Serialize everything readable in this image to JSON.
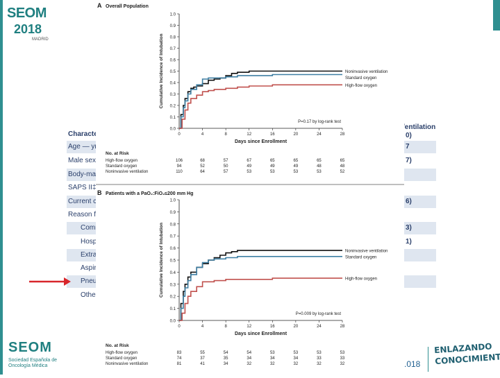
{
  "branding": {
    "logo_top": {
      "name": "SEOM",
      "year": "2018",
      "city": "MADRID"
    },
    "logo_bottom": {
      "name": "SEOM",
      "subtitle": "Sociedad Española de Oncología Médica"
    },
    "year_fragment": ".018",
    "slogan": "ENLAZANDO CONOCIMIENTO"
  },
  "background_table": {
    "header_left": "Characte",
    "header_right": "/entilation",
    "header_right_sub": "0)",
    "rows": [
      {
        "left": "Age — yr",
        "right": "7",
        "shaded": true,
        "indent": false
      },
      {
        "left": "Male sex",
        "right": "7)",
        "shaded": false,
        "indent": false
      },
      {
        "left": "Body-ma",
        "right": "",
        "shaded": true,
        "indent": false
      },
      {
        "left": "SAPS II‡",
        "right": "",
        "shaded": false,
        "indent": false
      },
      {
        "left": "Current c",
        "right": "6)",
        "shaded": true,
        "indent": false
      },
      {
        "left": "Reason f",
        "right": "",
        "shaded": false,
        "indent": false
      },
      {
        "left": "Comm",
        "right": "3)",
        "shaded": true,
        "indent": true
      },
      {
        "left": "Hosp",
        "right": "1)",
        "shaded": false,
        "indent": true
      },
      {
        "left": "Extra",
        "right": "",
        "shaded": true,
        "indent": true
      },
      {
        "left": "Aspir",
        "right": "",
        "shaded": false,
        "indent": true
      },
      {
        "left": "Pneu",
        "right": "",
        "shaded": true,
        "indent": true
      },
      {
        "left": "Othe",
        "right": "",
        "shaded": false,
        "indent": true
      }
    ]
  },
  "arrow_color": "#d8262b",
  "colors": {
    "niv": "#111111",
    "standard": "#3e7fa3",
    "hfo": "#c0504d"
  },
  "chart_data": [
    {
      "type": "line",
      "panel": "A",
      "title": "Overall Population",
      "xlabel": "Days since Enrollment",
      "ylabel": "Cumulative Incidence of Intubation",
      "xlim": [
        0,
        28
      ],
      "ylim": [
        0,
        1.0
      ],
      "xticks": [
        0,
        4,
        8,
        12,
        16,
        20,
        24,
        28
      ],
      "yticks": [
        0.0,
        0.1,
        0.2,
        0.3,
        0.4,
        0.5,
        0.6,
        0.7,
        0.8,
        0.9,
        1.0
      ],
      "step": true,
      "annotation": "P=0.17 by log-rank test",
      "series": [
        {
          "name": "Noninvasive ventilation",
          "color_key": "niv",
          "x": [
            0,
            0.3,
            0.7,
            1,
            1.5,
            2,
            2.5,
            3,
            4,
            5,
            6,
            7,
            8,
            9,
            10,
            12,
            14,
            16,
            20,
            24,
            28
          ],
          "y": [
            0,
            0.12,
            0.2,
            0.26,
            0.32,
            0.35,
            0.36,
            0.37,
            0.39,
            0.42,
            0.43,
            0.44,
            0.46,
            0.48,
            0.49,
            0.5,
            0.5,
            0.5,
            0.5,
            0.5,
            0.5
          ]
        },
        {
          "name": "Standard oxygen",
          "color_key": "standard",
          "x": [
            0,
            0.3,
            0.7,
            1,
            1.5,
            2,
            3,
            4,
            5,
            6,
            7,
            8,
            10,
            12,
            14,
            16,
            20,
            24,
            28
          ],
          "y": [
            0,
            0.1,
            0.18,
            0.24,
            0.3,
            0.34,
            0.38,
            0.43,
            0.44,
            0.44,
            0.44,
            0.45,
            0.46,
            0.46,
            0.46,
            0.47,
            0.47,
            0.47,
            0.47
          ]
        },
        {
          "name": "High-flow oxygen",
          "color_key": "hfo",
          "x": [
            0,
            0.5,
            1,
            1.5,
            2,
            3,
            4,
            5,
            6,
            8,
            10,
            12,
            14,
            16,
            20,
            24,
            28
          ],
          "y": [
            0,
            0.08,
            0.16,
            0.22,
            0.26,
            0.29,
            0.32,
            0.33,
            0.34,
            0.35,
            0.36,
            0.37,
            0.37,
            0.38,
            0.38,
            0.38,
            0.38
          ]
        }
      ],
      "risk_table": {
        "header": "No. at Risk",
        "rows": [
          {
            "label": "High-flow oxygen",
            "values": [
              "106",
              "68",
              "57",
              "67",
              "65",
              "65",
              "65",
              "65"
            ]
          },
          {
            "label": "Standard oxygen",
            "values": [
              "94",
              "52",
              "50",
              "49",
              "49",
              "49",
              "48",
              "48"
            ]
          },
          {
            "label": "Noninvasive ventilation",
            "values": [
              "110",
              "64",
              "57",
              "53",
              "53",
              "53",
              "53",
              "52"
            ]
          }
        ]
      }
    },
    {
      "type": "line",
      "panel": "B",
      "title": "Patients with a PaO₂:FiO₂≤200 mm Hg",
      "xlabel": "Days since Enrollment",
      "ylabel": "Cumulative Incidence of Intubation",
      "xlim": [
        0,
        28
      ],
      "ylim": [
        0,
        1.0
      ],
      "xticks": [
        0,
        4,
        8,
        12,
        16,
        20,
        24,
        28
      ],
      "yticks": [
        0.0,
        0.1,
        0.2,
        0.3,
        0.4,
        0.5,
        0.6,
        0.7,
        0.8,
        0.9,
        1.0
      ],
      "step": true,
      "annotation": "P=0.009 by log-rank test",
      "series": [
        {
          "name": "Noninvasive ventilation",
          "color_key": "niv",
          "x": [
            0,
            0.3,
            0.7,
            1,
            1.5,
            2,
            3,
            4,
            5,
            6,
            7,
            8,
            9,
            10,
            12,
            14,
            16,
            20,
            24,
            28
          ],
          "y": [
            0,
            0.14,
            0.24,
            0.3,
            0.36,
            0.4,
            0.44,
            0.47,
            0.5,
            0.52,
            0.54,
            0.56,
            0.57,
            0.58,
            0.58,
            0.58,
            0.58,
            0.58,
            0.58,
            0.58
          ]
        },
        {
          "name": "Standard oxygen",
          "color_key": "standard",
          "x": [
            0,
            0.3,
            0.7,
            1,
            1.5,
            2,
            3,
            4,
            5,
            6,
            8,
            10,
            12,
            14,
            16,
            20,
            24,
            28
          ],
          "y": [
            0,
            0.1,
            0.2,
            0.27,
            0.33,
            0.38,
            0.44,
            0.48,
            0.5,
            0.51,
            0.52,
            0.53,
            0.53,
            0.53,
            0.53,
            0.53,
            0.53,
            0.53
          ]
        },
        {
          "name": "High-flow oxygen",
          "color_key": "hfo",
          "x": [
            0,
            0.5,
            1,
            1.5,
            2,
            3,
            4,
            6,
            8,
            12,
            16,
            20,
            24,
            28
          ],
          "y": [
            0,
            0.06,
            0.14,
            0.2,
            0.24,
            0.28,
            0.32,
            0.33,
            0.34,
            0.34,
            0.35,
            0.35,
            0.35,
            0.35
          ]
        }
      ],
      "risk_table": {
        "header": "No. at Risk",
        "rows": [
          {
            "label": "High-flow oxygen",
            "values": [
              "83",
              "55",
              "54",
              "54",
              "53",
              "53",
              "53",
              "53"
            ]
          },
          {
            "label": "Standard oxygen",
            "values": [
              "74",
              "37",
              "35",
              "34",
              "34",
              "34",
              "33",
              "33"
            ]
          },
          {
            "label": "Noninvasive ventilation",
            "values": [
              "81",
              "41",
              "34",
              "32",
              "32",
              "32",
              "32",
              "32"
            ]
          }
        ]
      }
    }
  ]
}
